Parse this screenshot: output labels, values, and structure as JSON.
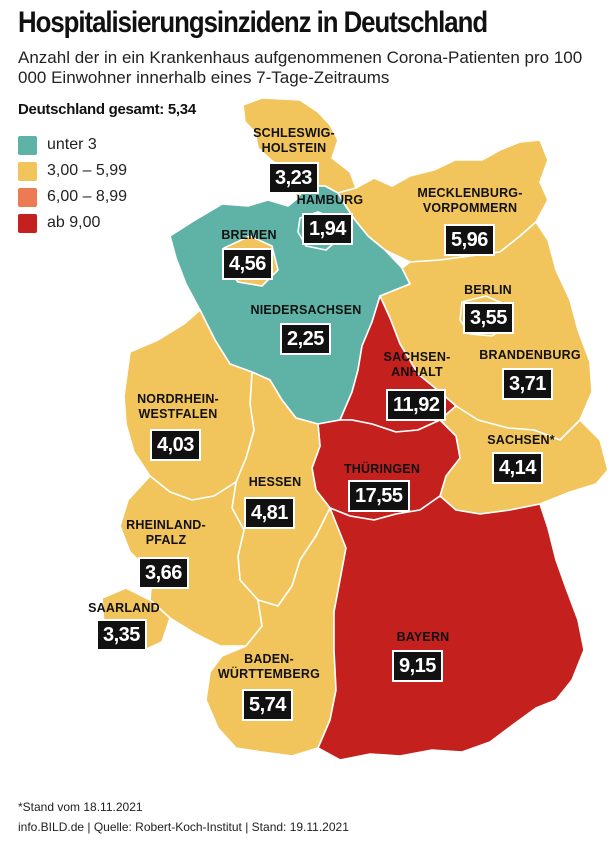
{
  "title": "Hospitalisierungsinzidenz in Deutschland",
  "subtitle": "Anzahl der in ein Krankenhaus aufgenommenen Corona-Patienten pro 100 000 Einwohner innerhalb eines 7-Tage-Zeitraums",
  "total": "Deutschland gesamt: 5,34",
  "legend": [
    {
      "label": "unter 3",
      "color": "#5fb3a6"
    },
    {
      "label": "3,00 – 5,99",
      "color": "#f2c45c"
    },
    {
      "label": "6,00 – 8,99",
      "color": "#ec7b54"
    },
    {
      "label": "ab 9,00",
      "color": "#c3201e"
    }
  ],
  "colors": {
    "teal": "#5fb3a6",
    "yellow": "#f2c45c",
    "red": "#c3201e",
    "border": "#ffffff"
  },
  "states": [
    {
      "key": "sh",
      "name": "SCHLESWIG-\nHOLSTEIN",
      "value": "3,23",
      "category": "yellow"
    },
    {
      "key": "hh",
      "name": "HAMBURG",
      "value": "1,94",
      "category": "teal"
    },
    {
      "key": "mv",
      "name": "MECKLENBURG-\nVORPOMMERN",
      "value": "5,96",
      "category": "yellow"
    },
    {
      "key": "hb",
      "name": "BREMEN",
      "value": "4,56",
      "category": "yellow"
    },
    {
      "key": "ni",
      "name": "NIEDERSACHSEN",
      "value": "2,25",
      "category": "teal"
    },
    {
      "key": "be",
      "name": "BERLIN",
      "value": "3,55",
      "category": "yellow"
    },
    {
      "key": "st",
      "name": "SACHSEN-\nANHALT",
      "value": "11,92",
      "category": "red"
    },
    {
      "key": "bb",
      "name": "BRANDENBURG",
      "value": "3,71",
      "category": "yellow"
    },
    {
      "key": "nw",
      "name": "NORDRHEIN-\nWESTFALEN",
      "value": "4,03",
      "category": "yellow"
    },
    {
      "key": "sn",
      "name": "SACHSEN*",
      "value": "4,14",
      "category": "yellow"
    },
    {
      "key": "th",
      "name": "THÜRINGEN",
      "value": "17,55",
      "category": "red"
    },
    {
      "key": "he",
      "name": "HESSEN",
      "value": "4,81",
      "category": "yellow"
    },
    {
      "key": "rp",
      "name": "RHEINLAND-\nPFALZ",
      "value": "3,66",
      "category": "yellow"
    },
    {
      "key": "sl",
      "name": "SAARLAND",
      "value": "3,35",
      "category": "yellow"
    },
    {
      "key": "by",
      "name": "BAYERN",
      "value": "9,15",
      "category": "red"
    },
    {
      "key": "bw",
      "name": "BADEN-\nWÜRTTEMBERG",
      "value": "5,74",
      "category": "yellow"
    }
  ],
  "footnote": "*Stand vom 18.11.2021",
  "source": "info.BILD.de | Quelle: Robert-Koch-Institut | Stand: 19.11.2021"
}
